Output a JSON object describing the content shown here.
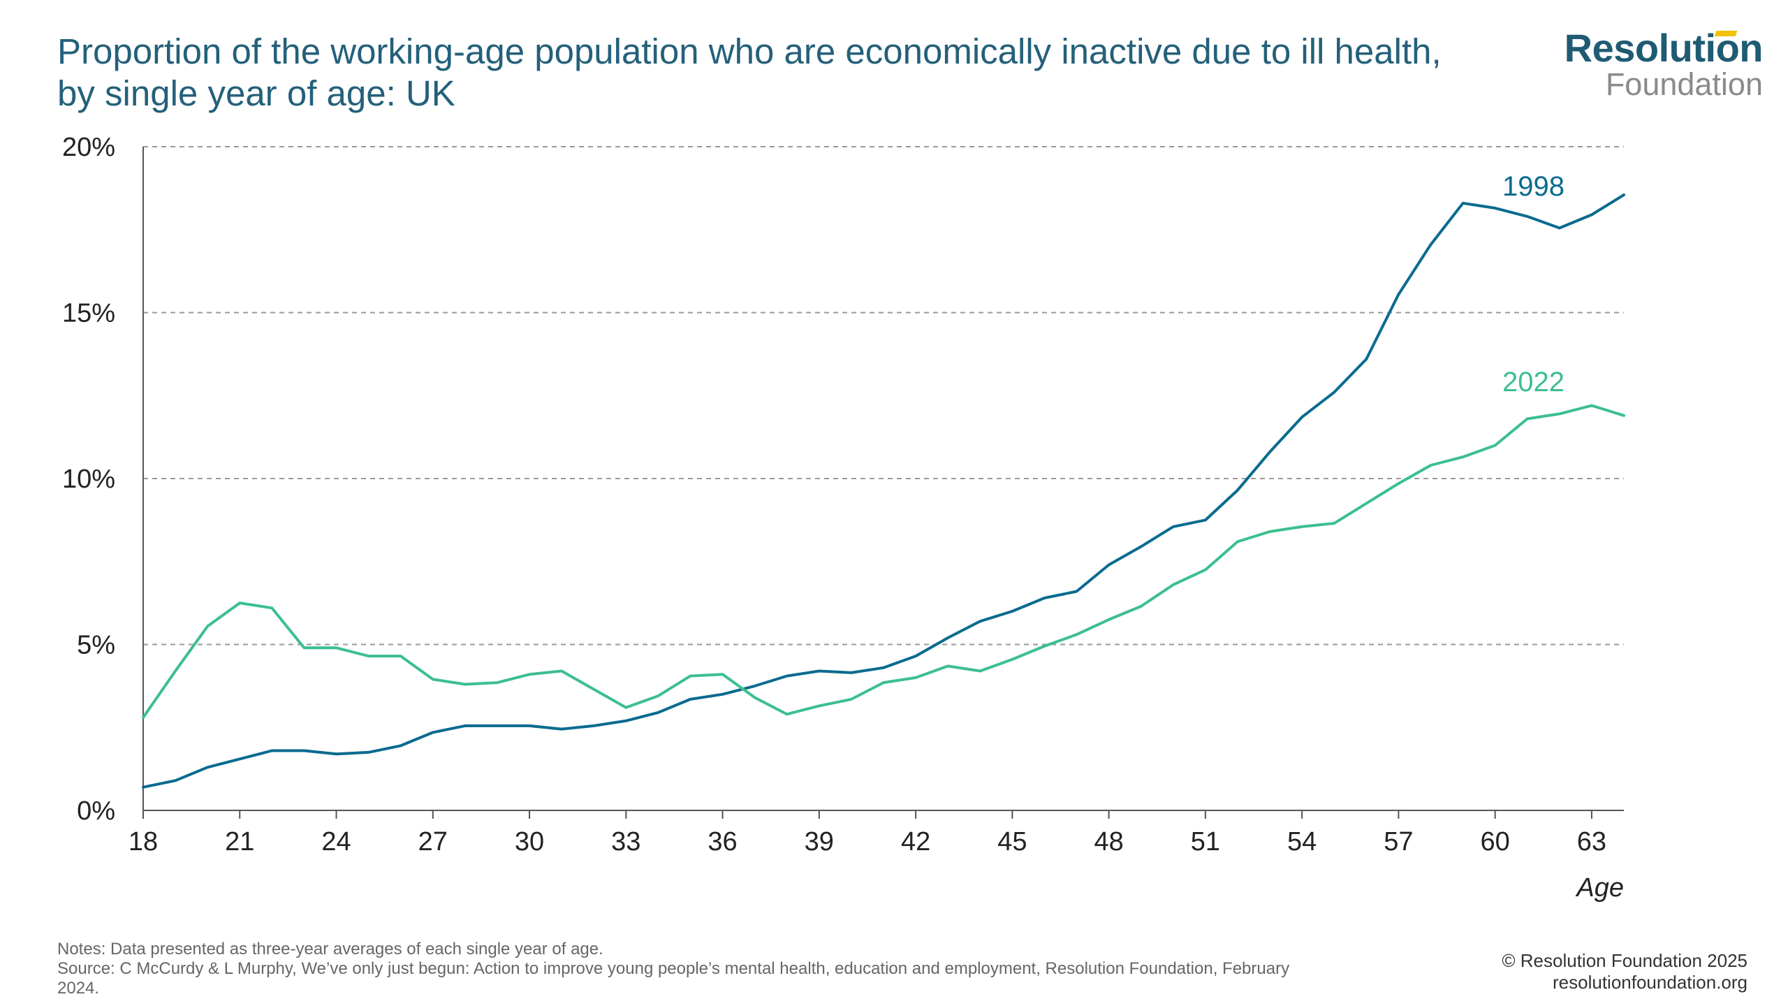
{
  "title": {
    "line1": "Proportion of the working-age population who are economically inactive due to ill health,",
    "line2": "by single year of age: UK"
  },
  "logo": {
    "top": "Resolution",
    "bottom": "Foundation"
  },
  "notes": {
    "line1": "Notes: Data presented as three-year averages of each single year of age.",
    "line2": "Source: C McCurdy & L Murphy, We’ve only just begun: Action to improve young people’s mental health, education and employment, Resolution Foundation, February",
    "line3": "2024."
  },
  "credits": {
    "line1": "© Resolution Foundation 2025",
    "line2": "resolutionfoundation.org"
  },
  "chart_data": {
    "type": "line",
    "xlabel": "Age",
    "ylabel": "",
    "xlim": [
      18,
      64
    ],
    "ylim": [
      0,
      20
    ],
    "y_ticks": [
      {
        "value": 0,
        "label": "0%"
      },
      {
        "value": 5,
        "label": "5%"
      },
      {
        "value": 10,
        "label": "10%"
      },
      {
        "value": 15,
        "label": "15%"
      },
      {
        "value": 20,
        "label": "20%"
      }
    ],
    "x_ticks": [
      18,
      21,
      24,
      27,
      30,
      33,
      36,
      39,
      42,
      45,
      48,
      51,
      54,
      57,
      60,
      63
    ],
    "grid": "horizontal dashed",
    "x": [
      18,
      19,
      20,
      21,
      22,
      23,
      24,
      25,
      26,
      27,
      28,
      29,
      30,
      31,
      32,
      33,
      34,
      35,
      36,
      37,
      38,
      39,
      40,
      41,
      42,
      43,
      44,
      45,
      46,
      47,
      48,
      49,
      50,
      51,
      52,
      53,
      54,
      55,
      56,
      57,
      58,
      59,
      60,
      61,
      62,
      63,
      64
    ],
    "series": [
      {
        "name": "1998",
        "color": "#0a6b8f",
        "values": [
          0.7,
          0.9,
          1.3,
          1.55,
          1.8,
          1.8,
          1.7,
          1.75,
          1.95,
          2.35,
          2.55,
          2.55,
          2.55,
          2.45,
          2.55,
          2.7,
          2.95,
          3.35,
          3.5,
          3.75,
          4.05,
          4.2,
          4.15,
          4.3,
          4.65,
          5.2,
          5.7,
          6.0,
          6.4,
          6.6,
          7.4,
          7.95,
          8.55,
          8.75,
          9.65,
          10.8,
          11.85,
          12.6,
          13.6,
          15.55,
          17.05,
          18.3,
          18.15,
          17.9,
          17.55,
          17.95,
          18.55
        ]
      },
      {
        "name": "2022",
        "color": "#3cbf8e",
        "values": [
          2.8,
          4.2,
          5.55,
          6.25,
          6.1,
          4.9,
          4.9,
          4.65,
          4.65,
          3.95,
          3.8,
          3.85,
          4.1,
          4.2,
          3.65,
          3.1,
          3.45,
          4.05,
          4.1,
          3.4,
          2.9,
          3.15,
          3.35,
          3.85,
          4.0,
          4.35,
          4.2,
          4.55,
          4.95,
          5.3,
          5.75,
          6.15,
          6.8,
          7.25,
          8.1,
          8.4,
          8.55,
          8.65,
          9.25,
          9.85,
          10.4,
          10.65,
          11.0,
          11.8,
          11.95,
          12.2,
          11.9
        ]
      }
    ]
  }
}
